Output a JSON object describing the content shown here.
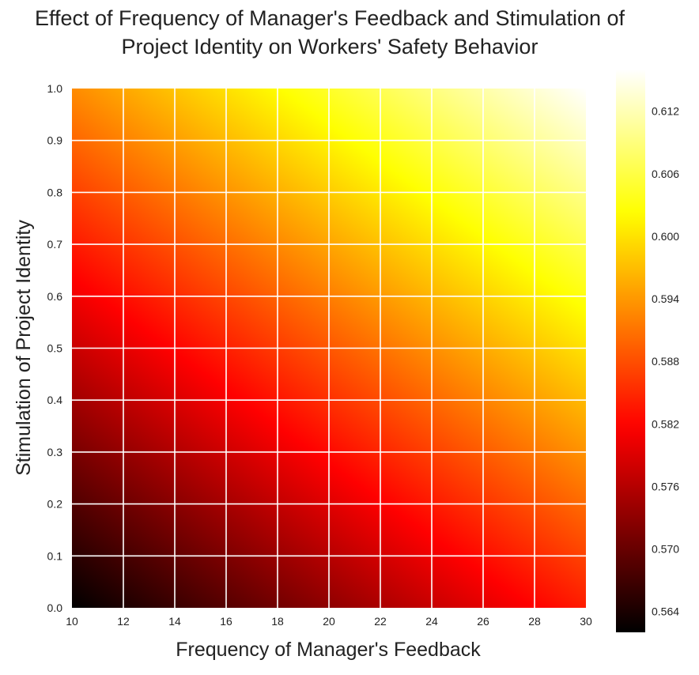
{
  "chart_data": {
    "type": "heatmap",
    "title_lines": [
      "Effect of Frequency of Manager's Feedback and Stimulation of",
      "Project Identity on Workers' Safety Behavior"
    ],
    "xlabel": "Frequency of Manager's Feedback",
    "ylabel": "Stimulation of Project Identity",
    "xlim": [
      10,
      30
    ],
    "ylim": [
      0.0,
      1.0
    ],
    "x_ticks": [
      10,
      12,
      14,
      16,
      18,
      20,
      22,
      24,
      26,
      28,
      30
    ],
    "x_tick_labels": [
      "10",
      "12",
      "14",
      "16",
      "18",
      "20",
      "22",
      "24",
      "26",
      "28",
      "30"
    ],
    "y_ticks": [
      0.0,
      0.1,
      0.2,
      0.3,
      0.4,
      0.5,
      0.6,
      0.7,
      0.8,
      0.9,
      1.0
    ],
    "y_tick_labels": [
      "0.0",
      "0.1",
      "0.2",
      "0.3",
      "0.4",
      "0.5",
      "0.6",
      "0.7",
      "0.8",
      "0.9",
      "1.0"
    ],
    "colormap": "hot",
    "grid": true,
    "value_range": [
      0.562,
      0.616
    ],
    "colorbar_ticks": [
      0.564,
      0.57,
      0.576,
      0.582,
      0.588,
      0.594,
      0.6,
      0.606,
      0.612
    ],
    "colorbar_tick_labels": [
      "0.564",
      "0.570",
      "0.576",
      "0.582",
      "0.588",
      "0.594",
      "0.600",
      "0.606",
      "0.612"
    ],
    "x": [
      10,
      30
    ],
    "y": [
      0.0,
      1.0
    ],
    "z": [
      [
        0.562,
        0.584
      ],
      [
        0.593,
        0.616
      ]
    ]
  }
}
